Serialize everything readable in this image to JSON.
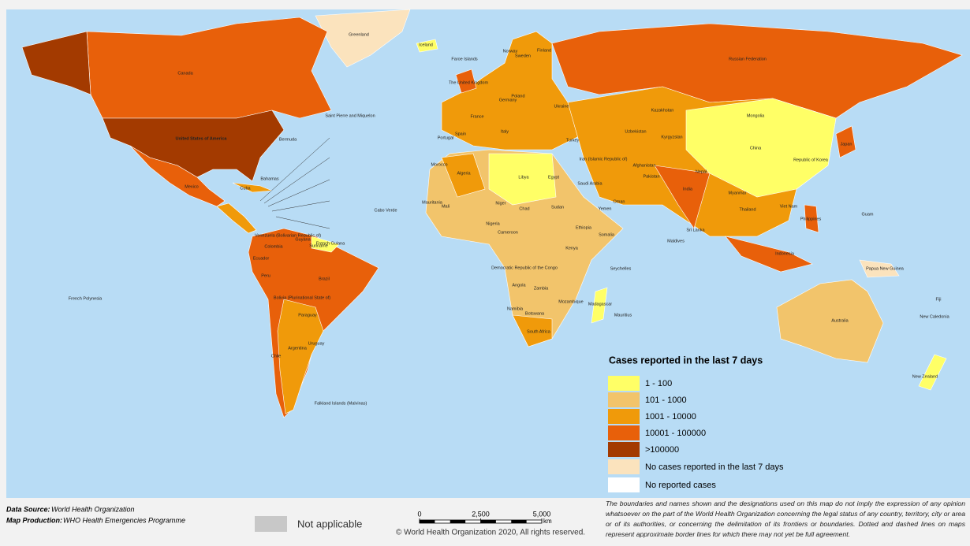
{
  "map": {
    "labels": [
      "United States of America",
      "Canada",
      "Greenland",
      "Iceland",
      "Russian Federation",
      "China",
      "India",
      "Brazil",
      "Australia",
      "Mexico",
      "Argentina",
      "Peru",
      "Colombia",
      "Algeria",
      "Libya",
      "Egypt",
      "Sudan",
      "Chad",
      "Niger",
      "Mali",
      "Nigeria",
      "Ethiopia",
      "Kenya",
      "Democratic Republic of the Congo",
      "Angola",
      "Namibia",
      "South Africa",
      "Madagascar",
      "Kazakhstan",
      "Mongolia",
      "Iran (Islamic Republic of)",
      "Saudi Arabia",
      "Turkey",
      "Ukraine",
      "Poland",
      "Germany",
      "France",
      "Spain",
      "Portugal",
      "Italy",
      "Indonesia",
      "Japan",
      "Republic of Korea",
      "Philippines",
      "Viet Nam",
      "Thailand",
      "Pakistan",
      "Afghanistan",
      "Morocco",
      "Mauritania",
      "Chile",
      "Bolivia (Plurinational State of)",
      "Venezuela (Bolivarian Republic of)",
      "Ecuador",
      "Cuba",
      "New Zealand",
      "Papua New Guinea",
      "French Polynesia",
      "Falkland Islands (Malvinas)",
      "Sri Lanka",
      "Sweden",
      "Norway",
      "Finland",
      "Faroe Islands",
      "The United Kingdom",
      "Bermuda",
      "Bahamas",
      "Cabo Verde",
      "New Caledonia",
      "Fiji",
      "Guam",
      "Mauritius",
      "Seychelles",
      "Maldives",
      "Zambia",
      "Mozambique",
      "Botswana",
      "Cameroon",
      "Somalia",
      "Yemen",
      "Oman",
      "Nepal",
      "Myanmar",
      "Uzbekistan",
      "Kyrgyzstan",
      "Saint Pierre and Miquelon",
      "Uruguay",
      "Paraguay",
      "Guyana",
      "Suriname",
      "French Guiana"
    ]
  },
  "legend": {
    "title": "Cases reported in the last 7 days",
    "items": [
      {
        "label": "1 - 100",
        "color": "#ffff66"
      },
      {
        "label": "101 - 1000",
        "color": "#f2c46b"
      },
      {
        "label": "1001 - 10000",
        "color": "#f09a0a"
      },
      {
        "label": "10001 - 100000",
        "color": "#e8600a"
      },
      {
        "label": ">100000",
        "color": "#a33a00"
      },
      {
        "label": "No cases reported in the last 7 days",
        "color": "#fbe3bd"
      },
      {
        "label": "No reported cases",
        "color": "#ffffff"
      }
    ]
  },
  "footer": {
    "data_source_label": "Data Source:",
    "data_source": "World Health Organization",
    "map_production_label": "Map Production:",
    "map_production": "WHO Health Emergencies Programme",
    "not_applicable": "Not applicable",
    "scale": {
      "xlim": [
        0,
        5000
      ],
      "xticks": [
        0,
        {
          "value": 2500,
          "label": "2,500"
        },
        {
          "value": 5000,
          "label": "5,000"
        }
      ],
      "unit": "km"
    },
    "copyright": "© World Health Organization 2020, All rights reserved.",
    "disclaimer": "The boundaries and names shown and the designations used on this map do not imply the expression of any opinion whatsoever on the part of the World Health Organization concerning the legal status of any country, territory, city or area or of its authorities, or concerning the delimitation of its frontiers or boundaries. Dotted and dashed lines on maps represent approximate border lines for which there may not yet be full agreement."
  }
}
